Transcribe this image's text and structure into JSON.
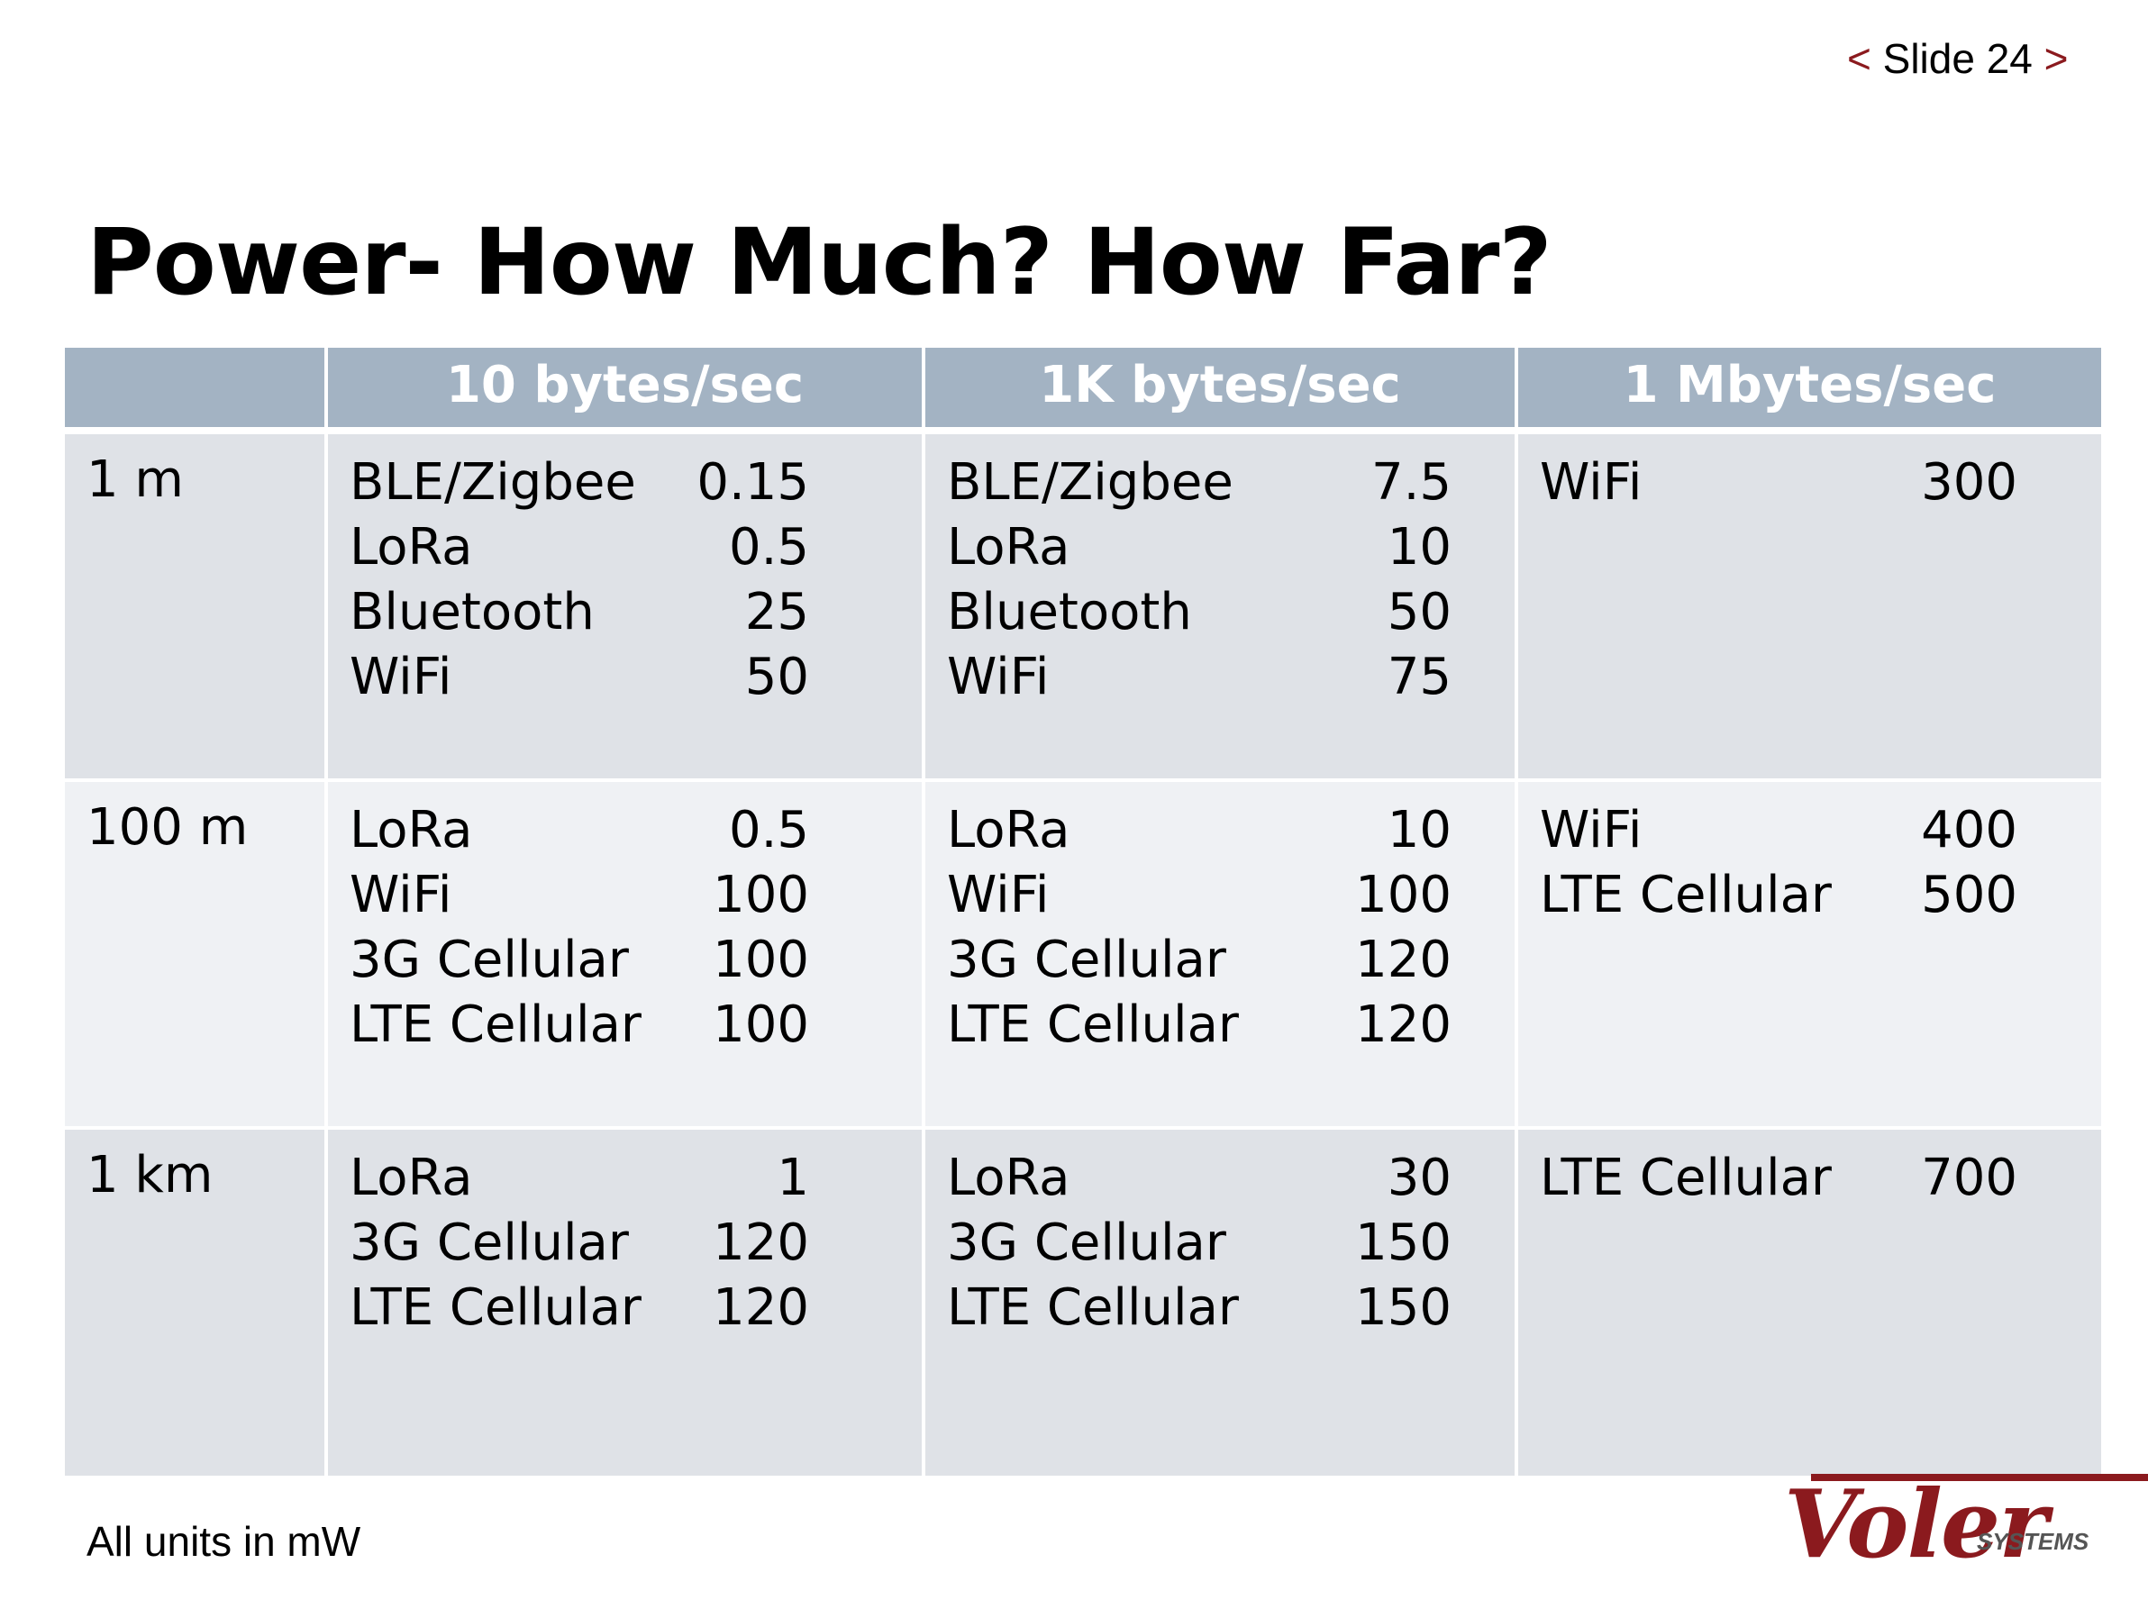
{
  "nav": {
    "prev": "<",
    "label": "Slide 24",
    "next": ">"
  },
  "title": "Power- How Much? How Far?",
  "table": {
    "headers": [
      "",
      "10 bytes/sec",
      "1K bytes/sec",
      "1 Mbytes/sec"
    ],
    "rows": [
      {
        "label": "1 m",
        "cells": [
          [
            [
              "BLE/Zigbee",
              "0.15"
            ],
            [
              "LoRa",
              "0.5"
            ],
            [
              "Bluetooth",
              "25"
            ],
            [
              "WiFi",
              "50"
            ]
          ],
          [
            [
              "BLE/Zigbee",
              "7.5"
            ],
            [
              "LoRa",
              "10"
            ],
            [
              "Bluetooth",
              "50"
            ],
            [
              "WiFi",
              "75"
            ]
          ],
          [
            [
              "WiFi",
              "300"
            ]
          ]
        ]
      },
      {
        "label": "100 m",
        "cells": [
          [
            [
              "LoRa",
              "0.5"
            ],
            [
              "WiFi",
              "100"
            ],
            [
              "3G Cellular",
              "100"
            ],
            [
              "LTE Cellular",
              "100"
            ]
          ],
          [
            [
              "LoRa",
              "10"
            ],
            [
              "WiFi",
              "100"
            ],
            [
              "3G Cellular",
              "120"
            ],
            [
              "LTE Cellular",
              "120"
            ]
          ],
          [
            [
              "WiFi",
              "400"
            ],
            [
              "LTE Cellular",
              "500"
            ]
          ]
        ]
      },
      {
        "label": "1 km",
        "cells": [
          [
            [
              "LoRa",
              "1"
            ],
            [
              "3G Cellular",
              "120"
            ],
            [
              "LTE Cellular",
              "120"
            ]
          ],
          [
            [
              "LoRa",
              "30"
            ],
            [
              "3G Cellular",
              "150"
            ],
            [
              "LTE Cellular",
              "150"
            ]
          ],
          [
            [
              "LTE Cellular",
              "700"
            ]
          ]
        ]
      }
    ]
  },
  "footnote": "All units in mW",
  "logo": {
    "word": "Voler",
    "sub": "SYSTEMS"
  },
  "colors": {
    "accent": "#8b1a1e",
    "header_bg": "#a3b3c3",
    "row_dark": "#dfe2e7",
    "row_light": "#eff1f4"
  }
}
